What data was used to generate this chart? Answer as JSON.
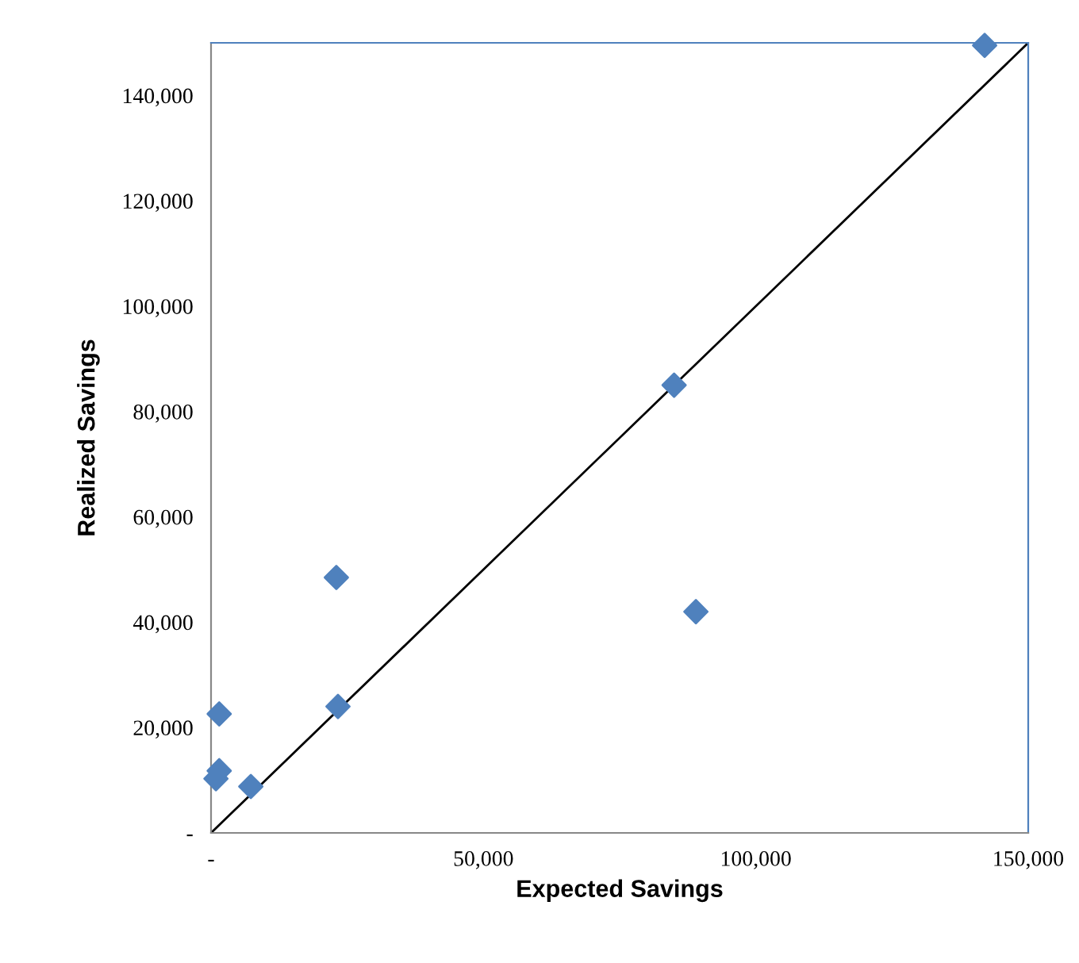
{
  "chart_data": {
    "type": "scatter",
    "xlabel": "Expected Savings",
    "ylabel": "Realized Savings",
    "xlim": [
      0,
      150000
    ],
    "ylim": [
      0,
      150000
    ],
    "xticks": [
      {
        "value": 0,
        "label": "-"
      },
      {
        "value": 50000,
        "label": "50,000"
      },
      {
        "value": 100000,
        "label": "100,000"
      },
      {
        "value": 150000,
        "label": "150,000"
      }
    ],
    "yticks": [
      {
        "value": 0,
        "label": "-"
      },
      {
        "value": 20000,
        "label": "20,000"
      },
      {
        "value": 40000,
        "label": "40,000"
      },
      {
        "value": 60000,
        "label": "60,000"
      },
      {
        "value": 80000,
        "label": "80,000"
      },
      {
        "value": 100000,
        "label": "100,000"
      },
      {
        "value": 120000,
        "label": "120,000"
      },
      {
        "value": 140000,
        "label": "140,000"
      }
    ],
    "marker": "diamond",
    "grid": false,
    "legend": false,
    "series": [
      {
        "color": "#4f81bd",
        "x": [
          142000,
          85000,
          89000,
          23000,
          23300,
          1500,
          1500,
          900,
          7300
        ],
        "values": [
          149500,
          85000,
          42000,
          48500,
          24000,
          22600,
          11800,
          10300,
          8800
        ]
      },
      {
        "type": "line",
        "color": "#000000",
        "marker": "none",
        "x": [
          0,
          150000
        ],
        "values": [
          0,
          150000
        ]
      }
    ]
  }
}
